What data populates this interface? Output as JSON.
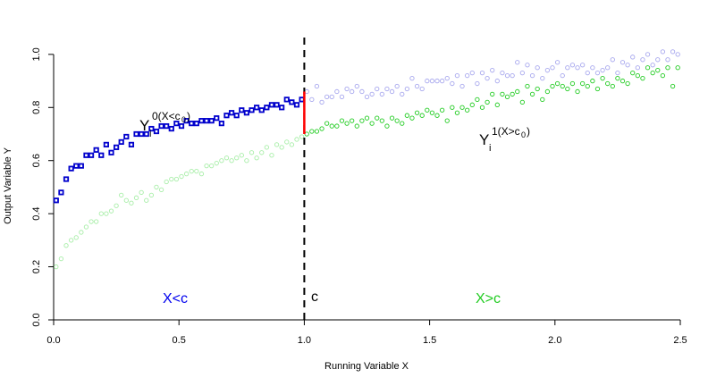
{
  "chart_data": {
    "type": "scatter",
    "title": "",
    "xlabel": "Running Variable X",
    "ylabel": "Output Variable Y",
    "xlim": [
      0,
      2.5
    ],
    "ylim": [
      0,
      1.05
    ],
    "xticks": [
      0.0,
      0.5,
      1.0,
      1.5,
      2.0,
      2.5
    ],
    "xtick_labels": [
      "0.0",
      "0.5",
      "1.0",
      "1.5",
      "2.0",
      "2.5"
    ],
    "yticks": [
      0.0,
      0.2,
      0.4,
      0.6,
      0.8,
      1.0
    ],
    "ytick_labels": [
      "0.0",
      "0.2",
      "0.4",
      "0.6",
      "0.8",
      "1.0"
    ],
    "grid": false,
    "cutoff": 1.0,
    "jump": [
      0.7,
      0.86
    ],
    "annotations": {
      "left_region": "X<c",
      "cutoff": "c",
      "right_region": "X>c",
      "y0_main": "Y",
      "y0_sub": "i",
      "y0_sup": "0(X<c",
      "y0_sup_sub": "0",
      "y0_sup_end": ")",
      "y1_main": "Y",
      "y1_sub": "i",
      "y1_sup": "1(X>c",
      "y1_sup_sub": "0",
      "y1_sup_end": ")"
    },
    "colors": {
      "treated_control": "#0000cc",
      "potential_control": "#a8a8ee",
      "treated": "#22cc22",
      "potential_treated": "#a8eea8",
      "jump": "#ff0000",
      "cutoff_line": "#000000"
    },
    "series": [
      {
        "key": "y0_left",
        "style": "filled-square",
        "x": [
          0.01,
          0.03,
          0.05,
          0.07,
          0.09,
          0.11,
          0.13,
          0.15,
          0.17,
          0.19,
          0.21,
          0.23,
          0.25,
          0.27,
          0.29,
          0.31,
          0.33,
          0.35,
          0.37,
          0.39,
          0.41,
          0.43,
          0.45,
          0.47,
          0.49,
          0.51,
          0.53,
          0.55,
          0.57,
          0.59,
          0.61,
          0.63,
          0.65,
          0.67,
          0.69,
          0.71,
          0.73,
          0.75,
          0.77,
          0.79,
          0.81,
          0.83,
          0.85,
          0.87,
          0.89,
          0.91,
          0.93,
          0.95,
          0.97,
          0.99
        ],
        "y": [
          0.45,
          0.48,
          0.53,
          0.57,
          0.58,
          0.58,
          0.62,
          0.62,
          0.64,
          0.62,
          0.66,
          0.63,
          0.65,
          0.67,
          0.69,
          0.66,
          0.7,
          0.7,
          0.7,
          0.72,
          0.71,
          0.73,
          0.73,
          0.72,
          0.74,
          0.73,
          0.75,
          0.74,
          0.74,
          0.75,
          0.75,
          0.75,
          0.76,
          0.74,
          0.77,
          0.78,
          0.77,
          0.79,
          0.78,
          0.79,
          0.8,
          0.79,
          0.8,
          0.81,
          0.81,
          0.8,
          0.83,
          0.82,
          0.81,
          0.83
        ]
      },
      {
        "key": "y0_right",
        "style": "open-circle",
        "x": [
          1.01,
          1.03,
          1.05,
          1.07,
          1.09,
          1.11,
          1.13,
          1.15,
          1.17,
          1.19,
          1.21,
          1.23,
          1.25,
          1.27,
          1.29,
          1.31,
          1.33,
          1.35,
          1.37,
          1.39,
          1.41,
          1.43,
          1.45,
          1.47,
          1.49,
          1.51,
          1.53,
          1.55,
          1.57,
          1.59,
          1.61,
          1.63,
          1.65,
          1.67,
          1.69,
          1.71,
          1.73,
          1.75,
          1.77,
          1.79,
          1.81,
          1.83,
          1.85,
          1.87,
          1.89,
          1.91,
          1.93,
          1.95,
          1.97,
          1.99,
          2.01,
          2.03,
          2.05,
          2.07,
          2.09,
          2.11,
          2.13,
          2.15,
          2.17,
          2.19,
          2.21,
          2.23,
          2.25,
          2.27,
          2.29,
          2.31,
          2.33,
          2.35,
          2.37,
          2.39,
          2.41,
          2.43,
          2.45,
          2.47,
          2.49
        ],
        "y": [
          0.86,
          0.83,
          0.88,
          0.82,
          0.84,
          0.84,
          0.86,
          0.84,
          0.87,
          0.86,
          0.88,
          0.86,
          0.84,
          0.85,
          0.87,
          0.85,
          0.87,
          0.86,
          0.88,
          0.85,
          0.87,
          0.91,
          0.88,
          0.87,
          0.9,
          0.9,
          0.9,
          0.9,
          0.91,
          0.89,
          0.92,
          0.88,
          0.92,
          0.93,
          0.89,
          0.93,
          0.91,
          0.94,
          0.9,
          0.93,
          0.92,
          0.92,
          0.97,
          0.93,
          0.96,
          0.92,
          0.95,
          0.91,
          0.94,
          0.95,
          0.97,
          0.92,
          0.95,
          0.96,
          0.95,
          0.96,
          0.93,
          0.95,
          0.93,
          0.94,
          0.95,
          0.98,
          0.93,
          0.97,
          0.96,
          0.99,
          0.95,
          0.98,
          1.0,
          0.96,
          0.98,
          1.01,
          0.98,
          1.01,
          1.0
        ]
      },
      {
        "key": "y1_left",
        "style": "open-circle",
        "x": [
          0.01,
          0.03,
          0.05,
          0.07,
          0.09,
          0.11,
          0.13,
          0.15,
          0.17,
          0.19,
          0.21,
          0.23,
          0.25,
          0.27,
          0.29,
          0.31,
          0.33,
          0.35,
          0.37,
          0.39,
          0.41,
          0.43,
          0.45,
          0.47,
          0.49,
          0.51,
          0.53,
          0.55,
          0.57,
          0.59,
          0.61,
          0.63,
          0.65,
          0.67,
          0.69,
          0.71,
          0.73,
          0.75,
          0.77,
          0.79,
          0.81,
          0.83,
          0.85,
          0.87,
          0.89,
          0.91,
          0.93,
          0.95,
          0.97,
          0.99
        ],
        "y": [
          0.2,
          0.23,
          0.28,
          0.3,
          0.31,
          0.33,
          0.35,
          0.37,
          0.37,
          0.4,
          0.4,
          0.41,
          0.43,
          0.47,
          0.45,
          0.44,
          0.46,
          0.48,
          0.45,
          0.47,
          0.5,
          0.49,
          0.52,
          0.53,
          0.53,
          0.54,
          0.55,
          0.56,
          0.56,
          0.55,
          0.58,
          0.58,
          0.59,
          0.6,
          0.61,
          0.6,
          0.61,
          0.62,
          0.6,
          0.63,
          0.61,
          0.63,
          0.65,
          0.62,
          0.66,
          0.65,
          0.67,
          0.66,
          0.68,
          0.69
        ]
      },
      {
        "key": "y1_right",
        "style": "open-circle",
        "x": [
          1.01,
          1.03,
          1.05,
          1.07,
          1.09,
          1.11,
          1.13,
          1.15,
          1.17,
          1.19,
          1.21,
          1.23,
          1.25,
          1.27,
          1.29,
          1.31,
          1.33,
          1.35,
          1.37,
          1.39,
          1.41,
          1.43,
          1.45,
          1.47,
          1.49,
          1.51,
          1.53,
          1.55,
          1.57,
          1.59,
          1.61,
          1.63,
          1.65,
          1.67,
          1.69,
          1.71,
          1.73,
          1.75,
          1.77,
          1.79,
          1.81,
          1.83,
          1.85,
          1.87,
          1.89,
          1.91,
          1.93,
          1.95,
          1.97,
          1.99,
          2.01,
          2.03,
          2.05,
          2.07,
          2.09,
          2.11,
          2.13,
          2.15,
          2.17,
          2.19,
          2.21,
          2.23,
          2.25,
          2.27,
          2.29,
          2.31,
          2.33,
          2.35,
          2.37,
          2.39,
          2.41,
          2.43,
          2.45,
          2.47,
          2.49
        ],
        "y": [
          0.7,
          0.71,
          0.71,
          0.72,
          0.74,
          0.73,
          0.73,
          0.75,
          0.74,
          0.75,
          0.73,
          0.75,
          0.76,
          0.74,
          0.76,
          0.75,
          0.73,
          0.76,
          0.75,
          0.74,
          0.77,
          0.76,
          0.78,
          0.77,
          0.79,
          0.78,
          0.77,
          0.79,
          0.75,
          0.8,
          0.78,
          0.8,
          0.79,
          0.81,
          0.83,
          0.8,
          0.82,
          0.85,
          0.81,
          0.85,
          0.84,
          0.85,
          0.86,
          0.82,
          0.88,
          0.85,
          0.87,
          0.83,
          0.86,
          0.88,
          0.89,
          0.88,
          0.87,
          0.89,
          0.86,
          0.89,
          0.88,
          0.9,
          0.87,
          0.91,
          0.89,
          0.88,
          0.91,
          0.9,
          0.89,
          0.93,
          0.92,
          0.91,
          0.95,
          0.93,
          0.94,
          0.92,
          0.95,
          0.88,
          0.95
        ]
      }
    ]
  }
}
